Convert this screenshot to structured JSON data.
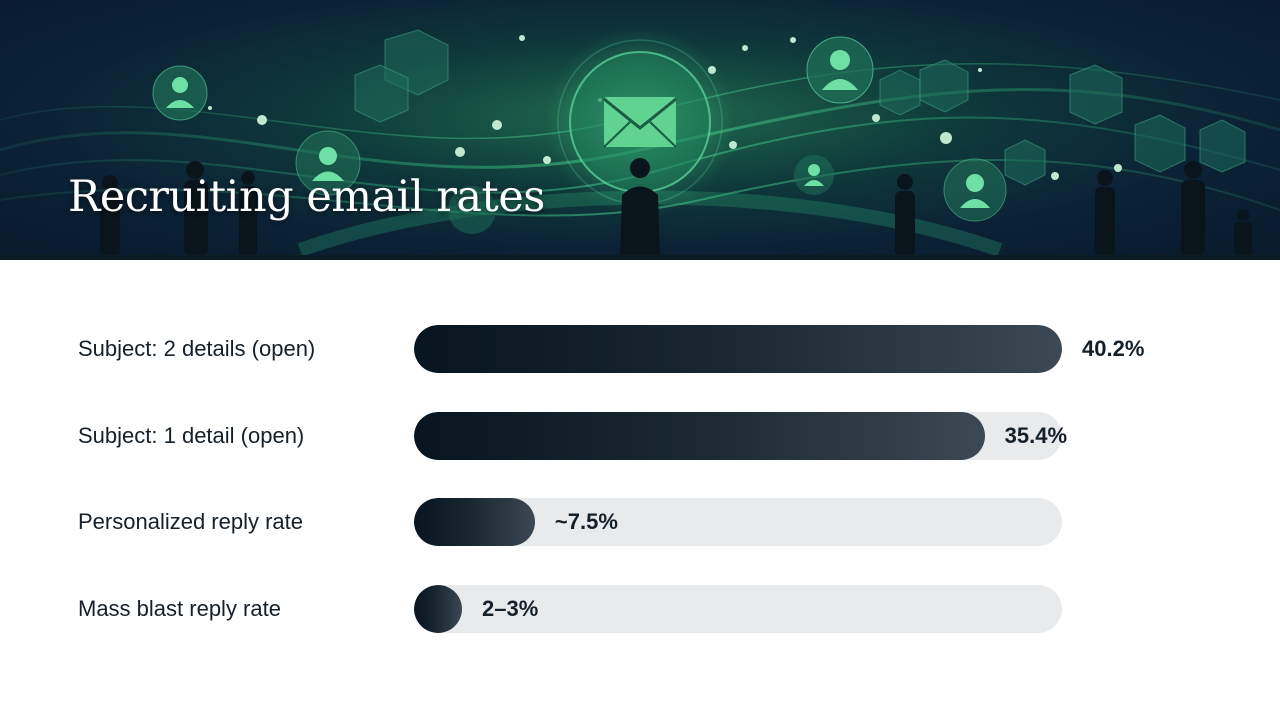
{
  "header": {
    "title": "Recruiting email rates"
  },
  "colors": {
    "bar_dark": "#061520",
    "bar_light": "#3c4853",
    "track": "#e9eaec",
    "text": "#15202a",
    "banner_green": "#2fbf7a",
    "banner_navy": "#0b2236"
  },
  "banner_icons": [
    "email-envelope-icon",
    "user-profile-icon",
    "network-node-icon",
    "hexagon-icon",
    "person-silhouette-icon"
  ],
  "chart_data": {
    "type": "bar",
    "orientation": "horizontal",
    "title": "Recruiting email rates",
    "xlim": [
      0,
      40.2
    ],
    "grid": false,
    "categories": [
      "Subject: 2 details (open)",
      "Subject: 1 detail (open)",
      "Personalized reply rate",
      "Mass blast reply rate"
    ],
    "values": [
      40.2,
      35.4,
      7.5,
      2.5
    ],
    "value_labels": [
      "40.2%",
      "35.4%",
      "~7.5%",
      "2–3%"
    ]
  }
}
